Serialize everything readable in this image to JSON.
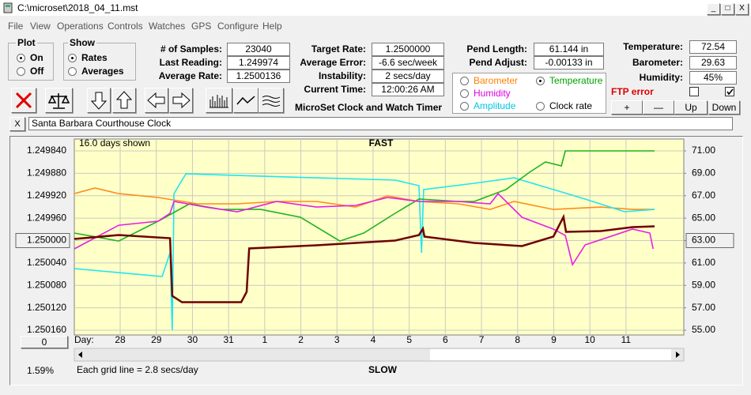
{
  "window": {
    "title": "C:\\microset\\2018_04_11.mst"
  },
  "menu": [
    "File",
    "View",
    "Operations",
    "Controls",
    "Watches",
    "GPS",
    "Configure",
    "Help"
  ],
  "plot": {
    "title": "Plot",
    "options": [
      "On",
      "Off"
    ],
    "selected": 0
  },
  "show": {
    "title": "Show",
    "options": [
      "Rates",
      "Averages"
    ],
    "selected": 0
  },
  "stats": [
    [
      "# of Samples:",
      "23040"
    ],
    [
      "Last Reading:",
      "1.249974"
    ],
    [
      "Average Rate:",
      "1.2500136"
    ]
  ],
  "rates": [
    [
      "Target Rate:",
      "1.2500000"
    ],
    [
      "Average Error:",
      "-6.6 sec/week"
    ],
    [
      "Instability:",
      "2 secs/day"
    ],
    [
      "Current Time:",
      "12:00:26 AM"
    ]
  ],
  "app_name": "MicroSet Clock and Watch Timer",
  "pendulum": [
    [
      "Pend Length:",
      "61.144 in"
    ],
    [
      "Pend Adjust:",
      "-0.00133 in"
    ]
  ],
  "display_options": {
    "selected": 1,
    "items": [
      {
        "label": "Barometer",
        "color": "#ff8000"
      },
      {
        "label": "Temperature",
        "color": "#00a000"
      },
      {
        "label": "Humidity",
        "color": "#e000e0"
      },
      {
        "label": "Amplitude",
        "color": "#00c8e0"
      },
      {
        "label": "Clock rate",
        "color": "#000000"
      }
    ]
  },
  "environment": [
    [
      "Temperature:",
      "72.54"
    ],
    [
      "Barometer:",
      "29.63"
    ],
    [
      "Humidity:",
      "45%"
    ]
  ],
  "ftp_error": "FTP error",
  "ftp_checks": [
    false,
    true
  ],
  "buttons": [
    "+",
    "—",
    "Up",
    "Down"
  ],
  "close_label": "X",
  "clock_name": "Santa Barbara Courthouse Clock",
  "footer": {
    "zoom": "0",
    "percent": "1.59%"
  },
  "chart_data": {
    "type": "line",
    "top_label": "FAST",
    "bottom_label": "SLOW",
    "span_label": "16.0 days shown",
    "x_label": "Day:",
    "grid_note": "Each grid line = 2.8 secs/day",
    "grid": true,
    "xlim": [
      0,
      16.87
    ],
    "xticks": [
      {
        "value": 1.27,
        "label": "28"
      },
      {
        "value": 2.27,
        "label": "29"
      },
      {
        "value": 3.27,
        "label": "30"
      },
      {
        "value": 4.27,
        "label": "31"
      },
      {
        "value": 5.27,
        "label": "1"
      },
      {
        "value": 6.27,
        "label": "2"
      },
      {
        "value": 7.27,
        "label": "3"
      },
      {
        "value": 8.27,
        "label": "4"
      },
      {
        "value": 9.27,
        "label": "5"
      },
      {
        "value": 10.27,
        "label": "6"
      },
      {
        "value": 11.27,
        "label": "7"
      },
      {
        "value": 12.27,
        "label": "8"
      },
      {
        "value": 13.27,
        "label": "9"
      },
      {
        "value": 14.27,
        "label": "10"
      },
      {
        "value": 15.27,
        "label": "11"
      }
    ],
    "ylim": [
      1.25016,
      1.24984
    ],
    "yticks": [
      {
        "value": 1.24984,
        "label": "1.249840"
      },
      {
        "value": 1.24988,
        "label": "1.249880"
      },
      {
        "value": 1.24992,
        "label": "1.249920"
      },
      {
        "value": 1.24996,
        "label": "1.249960"
      },
      {
        "value": 1.25,
        "label": "1.250000"
      },
      {
        "value": 1.25004,
        "label": "1.250040"
      },
      {
        "value": 1.25008,
        "label": "1.250080"
      },
      {
        "value": 1.25012,
        "label": "1.250120"
      },
      {
        "value": 1.25016,
        "label": "1.250160"
      }
    ],
    "y2lim": [
      55,
      71
    ],
    "y2ticks": [
      {
        "value": 71,
        "label": "71.00"
      },
      {
        "value": 69,
        "label": "69.00"
      },
      {
        "value": 67,
        "label": "67.00"
      },
      {
        "value": 65,
        "label": "65.00"
      },
      {
        "value": 63,
        "label": "63.00"
      },
      {
        "value": 61,
        "label": "61.00"
      },
      {
        "value": 59,
        "label": "59.00"
      },
      {
        "value": 57,
        "label": "57.00"
      },
      {
        "value": 55,
        "label": "55.00"
      }
    ],
    "series": [
      {
        "color": "#ff8c1a",
        "axis": "y2",
        "x": [
          0,
          0.57,
          1.23,
          2.32,
          3.41,
          4.51,
          5.6,
          6.7,
          7.79,
          8.67,
          9.54,
          10.63,
          11.51,
          12.17,
          13.26,
          14.57,
          15.45,
          16.06
        ],
        "values": [
          67.19,
          67.69,
          67.19,
          66.84,
          66.28,
          66.28,
          66.49,
          66.49,
          65.99,
          66.98,
          66.49,
          66.28,
          65.78,
          66.49,
          65.78,
          65.99,
          65.78,
          65.78
        ]
      },
      {
        "color": "#1ee6f0",
        "axis": "y2",
        "x": [
          0,
          1.23,
          2.43,
          2.65,
          2.71,
          2.76,
          3.09,
          4.51,
          6.7,
          8.88,
          9.54,
          9.61,
          9.67,
          11.07,
          12.17,
          13.26,
          14.14,
          15.23,
          16.06
        ],
        "values": [
          60.5,
          60.14,
          59.79,
          61.91,
          55,
          67.19,
          68.96,
          68.81,
          68.6,
          68.39,
          67.9,
          61.91,
          67.55,
          68.11,
          68.6,
          67.55,
          66.7,
          65.57,
          65.78
        ]
      },
      {
        "color": "#1eb41e",
        "axis": "y2",
        "x": [
          0,
          1.23,
          2.32,
          3.19,
          4.07,
          5.16,
          6.26,
          7.35,
          8.01,
          8.88,
          9.54,
          10.63,
          11.07,
          11.95,
          12.6,
          13.04,
          13.48,
          13.59,
          16.06
        ],
        "values": [
          63.67,
          62.96,
          64.73,
          66.28,
          65.78,
          65.78,
          65.08,
          62.96,
          63.67,
          65.43,
          66.7,
          66.49,
          66.49,
          67.55,
          69.1,
          70.01,
          69.66,
          71,
          71
        ]
      },
      {
        "color": "#e61ee6",
        "axis": "y2",
        "x": [
          0,
          1.23,
          2.32,
          2.65,
          2.76,
          3.63,
          4.51,
          5.6,
          6.7,
          7.79,
          8.67,
          9.54,
          10.63,
          11.51,
          11.73,
          12.39,
          13.26,
          13.59,
          13.79,
          14.14,
          15.45,
          15.93,
          16.02
        ],
        "values": [
          62.26,
          64.37,
          64.73,
          65.43,
          66.49,
          65.99,
          65.57,
          66.49,
          65.99,
          66.14,
          66.84,
          66.49,
          66.49,
          66.28,
          67.19,
          65.08,
          64.02,
          63.46,
          60.85,
          62.61,
          64.02,
          63.67,
          62.26
        ]
      },
      {
        "color": "#6e0000",
        "axis": "y",
        "x": [
          0,
          1.23,
          2.65,
          2.71,
          2.98,
          3.63,
          4.62,
          4.77,
          4.84,
          6.7,
          8.88,
          9.54,
          9.65,
          9.69,
          11.07,
          12.39,
          13.26,
          13.54,
          13.61,
          14.57,
          15.45,
          16.06
        ],
        "values": [
          1.2499972,
          1.2499901,
          1.2499958,
          1.2500987,
          1.25011,
          1.25011,
          1.25011,
          1.2500917,
          1.2500141,
          1.2500085,
          1.25,
          1.2499901,
          1.2499789,
          1.249993,
          1.2500042,
          1.2500099,
          1.249993,
          1.2499577,
          1.2499845,
          1.2499831,
          1.249976,
          1.2499746
        ]
      }
    ]
  }
}
